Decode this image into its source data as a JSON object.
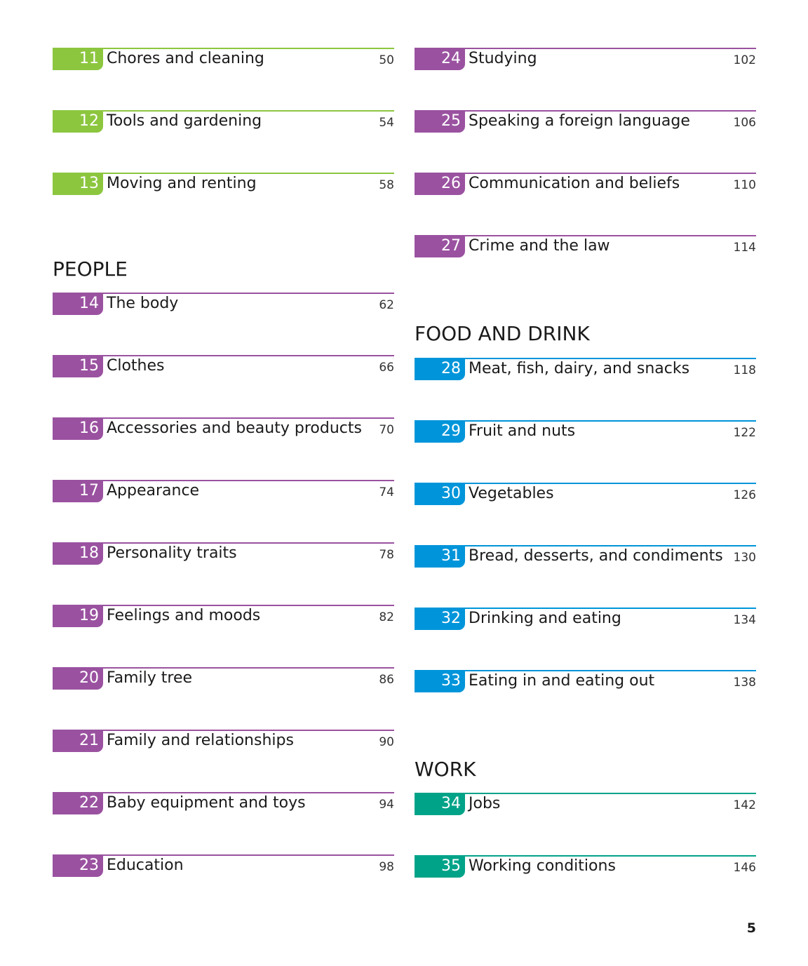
{
  "colors": {
    "green": "#8cc63f",
    "purple": "#9a52a0",
    "blue": "#0095da",
    "teal": "#00a388"
  },
  "left_column": {
    "top_entries": [
      {
        "num": "11",
        "title": "Chores and cleaning",
        "page": "50",
        "color": "green"
      },
      {
        "num": "12",
        "title": "Tools and gardening",
        "page": "54",
        "color": "green"
      },
      {
        "num": "13",
        "title": "Moving and renting",
        "page": "58",
        "color": "green"
      }
    ],
    "people": {
      "heading": "PEOPLE",
      "entries": [
        {
          "num": "14",
          "title": "The body",
          "page": "62",
          "color": "purple"
        },
        {
          "num": "15",
          "title": "Clothes",
          "page": "66",
          "color": "purple"
        },
        {
          "num": "16",
          "title": "Accessories and beauty products",
          "page": "70",
          "color": "purple"
        },
        {
          "num": "17",
          "title": "Appearance",
          "page": "74",
          "color": "purple"
        },
        {
          "num": "18",
          "title": "Personality traits",
          "page": "78",
          "color": "purple"
        },
        {
          "num": "19",
          "title": "Feelings and moods",
          "page": "82",
          "color": "purple"
        },
        {
          "num": "20",
          "title": "Family tree",
          "page": "86",
          "color": "purple"
        },
        {
          "num": "21",
          "title": "Family and relationships",
          "page": "90",
          "color": "purple"
        },
        {
          "num": "22",
          "title": "Baby equipment and toys",
          "page": "94",
          "color": "purple"
        },
        {
          "num": "23",
          "title": "Education",
          "page": "98",
          "color": "purple"
        }
      ]
    }
  },
  "right_column": {
    "top_entries": [
      {
        "num": "24",
        "title": "Studying",
        "page": "102",
        "color": "purple"
      },
      {
        "num": "25",
        "title": "Speaking a foreign language",
        "page": "106",
        "color": "purple"
      },
      {
        "num": "26",
        "title": "Communication and beliefs",
        "page": "110",
        "color": "purple"
      },
      {
        "num": "27",
        "title": "Crime and the law",
        "page": "114",
        "color": "purple"
      }
    ],
    "food_and_drink": {
      "heading": "FOOD AND DRINK",
      "entries": [
        {
          "num": "28",
          "title": "Meat, fish, dairy, and snacks",
          "page": "118",
          "color": "blue"
        },
        {
          "num": "29",
          "title": "Fruit and nuts",
          "page": "122",
          "color": "blue"
        },
        {
          "num": "30",
          "title": "Vegetables",
          "page": "126",
          "color": "blue"
        },
        {
          "num": "31",
          "title": "Bread, desserts, and condiments",
          "page": "130",
          "color": "blue"
        },
        {
          "num": "32",
          "title": "Drinking and eating",
          "page": "134",
          "color": "blue"
        },
        {
          "num": "33",
          "title": "Eating in and eating out",
          "page": "138",
          "color": "blue"
        }
      ]
    },
    "work": {
      "heading": "WORK",
      "entries": [
        {
          "num": "34",
          "title": "Jobs",
          "page": "142",
          "color": "teal"
        },
        {
          "num": "35",
          "title": "Working conditions",
          "page": "146",
          "color": "teal"
        }
      ]
    }
  },
  "page_number": "5"
}
